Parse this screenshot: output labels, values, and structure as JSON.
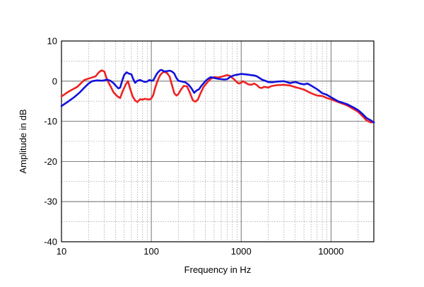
{
  "chart_data": {
    "type": "line",
    "xlabel": "Frequency in Hz",
    "ylabel": "Amplitude in dB",
    "xscale": "log",
    "xlim": [
      10,
      30000
    ],
    "ylim": [
      -40,
      10
    ],
    "grid": true,
    "x_ticks": [
      10,
      100,
      1000,
      10000
    ],
    "x_tick_labels": [
      "10",
      "100",
      "1000",
      "10000"
    ],
    "y_ticks": [
      10,
      0,
      -10,
      -20,
      -30,
      -40
    ],
    "y_tick_labels": [
      "10",
      "0",
      "-10",
      "-20",
      "-30",
      "-40"
    ],
    "series": [
      {
        "color": "#ee2222",
        "points": [
          [
            10,
            -3.8
          ],
          [
            12,
            -2.6
          ],
          [
            15,
            -1.4
          ],
          [
            18,
            0.3
          ],
          [
            21,
            0.8
          ],
          [
            24,
            1.2
          ],
          [
            26,
            2.2
          ],
          [
            28,
            2.7
          ],
          [
            30,
            2.4
          ],
          [
            32,
            0.5
          ],
          [
            35,
            -1.2
          ],
          [
            38,
            -2.8
          ],
          [
            42,
            -3.8
          ],
          [
            45,
            -4.2
          ],
          [
            48,
            -2.5
          ],
          [
            52,
            -0.8
          ],
          [
            55,
            0.0
          ],
          [
            58,
            -1.8
          ],
          [
            62,
            -3.8
          ],
          [
            66,
            -4.8
          ],
          [
            70,
            -5.2
          ],
          [
            75,
            -4.5
          ],
          [
            80,
            -4.6
          ],
          [
            85,
            -4.4
          ],
          [
            90,
            -4.5
          ],
          [
            95,
            -4.6
          ],
          [
            100,
            -4.3
          ],
          [
            105,
            -3.5
          ],
          [
            110,
            -1.8
          ],
          [
            115,
            -0.5
          ],
          [
            120,
            0.6
          ],
          [
            125,
            1.4
          ],
          [
            130,
            1.9
          ],
          [
            135,
            2.2
          ],
          [
            140,
            2.3
          ],
          [
            150,
            2.0
          ],
          [
            160,
            1.1
          ],
          [
            170,
            -1.0
          ],
          [
            180,
            -3.0
          ],
          [
            190,
            -3.6
          ],
          [
            200,
            -3.2
          ],
          [
            215,
            -2.0
          ],
          [
            230,
            -1.2
          ],
          [
            250,
            -1.3
          ],
          [
            270,
            -3.0
          ],
          [
            290,
            -4.8
          ],
          [
            310,
            -5.1
          ],
          [
            330,
            -4.6
          ],
          [
            350,
            -3.2
          ],
          [
            380,
            -1.5
          ],
          [
            420,
            -0.3
          ],
          [
            460,
            0.6
          ],
          [
            500,
            1.0
          ],
          [
            550,
            0.9
          ],
          [
            600,
            1.1
          ],
          [
            650,
            1.3
          ],
          [
            700,
            1.5
          ],
          [
            750,
            1.3
          ],
          [
            800,
            0.8
          ],
          [
            850,
            0.3
          ],
          [
            900,
            -0.3
          ],
          [
            950,
            -0.6
          ],
          [
            1000,
            -0.4
          ],
          [
            1050,
            0.0
          ],
          [
            1100,
            -0.3
          ],
          [
            1200,
            -0.8
          ],
          [
            1300,
            -0.9
          ],
          [
            1400,
            -0.6
          ],
          [
            1500,
            -1.0
          ],
          [
            1600,
            -1.6
          ],
          [
            1700,
            -1.7
          ],
          [
            1800,
            -1.4
          ],
          [
            2000,
            -1.6
          ],
          [
            2200,
            -1.2
          ],
          [
            2500,
            -1.0
          ],
          [
            3000,
            -0.9
          ],
          [
            3500,
            -1.1
          ],
          [
            4000,
            -1.5
          ],
          [
            4500,
            -1.8
          ],
          [
            5000,
            -2.1
          ],
          [
            6000,
            -3.0
          ],
          [
            7000,
            -3.6
          ],
          [
            8000,
            -3.7
          ],
          [
            9000,
            -4.2
          ],
          [
            10000,
            -4.5
          ],
          [
            12000,
            -5.2
          ],
          [
            15000,
            -6.0
          ],
          [
            18000,
            -7.0
          ],
          [
            20000,
            -7.6
          ],
          [
            22000,
            -8.5
          ],
          [
            25000,
            -9.8
          ],
          [
            28000,
            -10.3
          ],
          [
            30000,
            -10.1
          ]
        ]
      },
      {
        "color": "#1111dd",
        "points": [
          [
            10,
            -6.2
          ],
          [
            12,
            -5.0
          ],
          [
            14,
            -3.9
          ],
          [
            16,
            -2.8
          ],
          [
            18,
            -1.6
          ],
          [
            20,
            -0.6
          ],
          [
            22,
            0.0
          ],
          [
            25,
            0.2
          ],
          [
            28,
            0.1
          ],
          [
            30,
            0.2
          ],
          [
            32,
            0.4
          ],
          [
            35,
            0.1
          ],
          [
            38,
            -0.5
          ],
          [
            40,
            -1.1
          ],
          [
            43,
            -1.8
          ],
          [
            45,
            -1.6
          ],
          [
            48,
            0.5
          ],
          [
            50,
            1.6
          ],
          [
            53,
            2.2
          ],
          [
            56,
            1.9
          ],
          [
            60,
            1.7
          ],
          [
            63,
            0.5
          ],
          [
            66,
            -0.4
          ],
          [
            70,
            0.1
          ],
          [
            75,
            0.3
          ],
          [
            80,
            0.0
          ],
          [
            85,
            -0.2
          ],
          [
            90,
            -0.1
          ],
          [
            95,
            0.3
          ],
          [
            100,
            0.1
          ],
          [
            105,
            0.2
          ],
          [
            110,
            1.0
          ],
          [
            115,
            1.8
          ],
          [
            120,
            2.3
          ],
          [
            125,
            2.7
          ],
          [
            130,
            2.8
          ],
          [
            135,
            2.6
          ],
          [
            140,
            2.4
          ],
          [
            150,
            2.5
          ],
          [
            160,
            2.6
          ],
          [
            170,
            2.4
          ],
          [
            180,
            1.9
          ],
          [
            190,
            0.8
          ],
          [
            200,
            0.1
          ],
          [
            220,
            -0.1
          ],
          [
            240,
            -0.3
          ],
          [
            260,
            -0.9
          ],
          [
            280,
            -1.8
          ],
          [
            300,
            -2.9
          ],
          [
            320,
            -2.3
          ],
          [
            340,
            -2.0
          ],
          [
            360,
            -1.2
          ],
          [
            380,
            -0.6
          ],
          [
            400,
            0.0
          ],
          [
            430,
            0.6
          ],
          [
            460,
            1.0
          ],
          [
            500,
            0.8
          ],
          [
            550,
            0.6
          ],
          [
            600,
            0.5
          ],
          [
            650,
            0.4
          ],
          [
            700,
            0.5
          ],
          [
            750,
            1.0
          ],
          [
            800,
            1.3
          ],
          [
            850,
            1.5
          ],
          [
            900,
            1.6
          ],
          [
            950,
            1.7
          ],
          [
            1000,
            1.8
          ],
          [
            1100,
            1.7
          ],
          [
            1200,
            1.6
          ],
          [
            1300,
            1.5
          ],
          [
            1400,
            1.4
          ],
          [
            1500,
            1.2
          ],
          [
            1700,
            0.4
          ],
          [
            2000,
            -0.2
          ],
          [
            2200,
            -0.3
          ],
          [
            2500,
            -0.1
          ],
          [
            3000,
            0.0
          ],
          [
            3500,
            -0.5
          ],
          [
            4000,
            -0.2
          ],
          [
            4500,
            -0.6
          ],
          [
            5000,
            -0.8
          ],
          [
            5500,
            -0.6
          ],
          [
            6000,
            -1.1
          ],
          [
            7000,
            -2.0
          ],
          [
            8000,
            -3.0
          ],
          [
            9000,
            -3.4
          ],
          [
            10000,
            -4.0
          ],
          [
            12000,
            -5.0
          ],
          [
            15000,
            -5.7
          ],
          [
            18000,
            -6.6
          ],
          [
            20000,
            -7.2
          ],
          [
            22000,
            -8.0
          ],
          [
            25000,
            -9.2
          ],
          [
            28000,
            -9.8
          ],
          [
            30000,
            -10.3
          ]
        ]
      }
    ]
  }
}
